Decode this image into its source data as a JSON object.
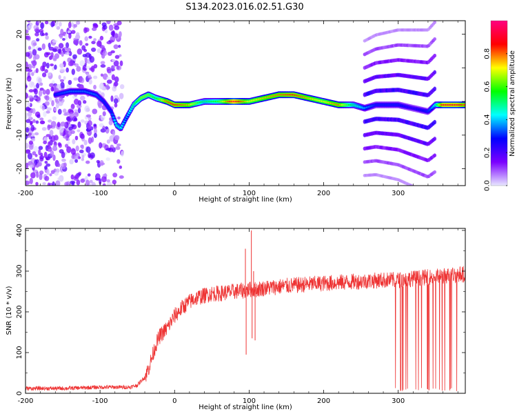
{
  "title": "S134.2023.016.02.51.G30",
  "chart_data": [
    {
      "type": "heatmap",
      "xlabel": "Height of straight line (km)",
      "ylabel": "Frequency (Hz)",
      "xlim": [
        -200,
        390
      ],
      "ylim": [
        -25,
        24
      ],
      "xticks": [
        -200,
        -100,
        0,
        100,
        200,
        300
      ],
      "yticks": [
        -20,
        -10,
        0,
        10,
        20
      ],
      "colorbar": {
        "label": "Normalized spectral amplitude",
        "range": [
          0,
          1
        ],
        "ticks": [
          "0.0",
          "0.2",
          "0.4",
          "0.6",
          "0.8"
        ],
        "tick_values": [
          0,
          0.2,
          0.4,
          0.6,
          0.8
        ],
        "colors": [
          "#e8e8ff",
          "#7b00ff",
          "#0000ff",
          "#00ffff",
          "#00ff00",
          "#ffff00",
          "#ff0000",
          "#ff0080"
        ]
      },
      "ridge": {
        "x": [
          -160,
          -140,
          -120,
          -105,
          -95,
          -85,
          -78,
          -72,
          -65,
          -55,
          -45,
          -35,
          -25,
          -10,
          0,
          20,
          40,
          60,
          80,
          100,
          120,
          140,
          160,
          180,
          200,
          220,
          240,
          255,
          270,
          300,
          320,
          340,
          350,
          360,
          380,
          390
        ],
        "y": [
          2,
          3,
          3,
          2,
          0,
          -3,
          -7,
          -8,
          -5,
          -1,
          1,
          2,
          1,
          0,
          -1,
          -1,
          0,
          0,
          0,
          0,
          1,
          2,
          2,
          1,
          0,
          -1,
          -1,
          -2,
          -1,
          -1,
          -2,
          -3,
          -1,
          -1,
          -1,
          -1
        ],
        "amplitude": [
          0.3,
          0.35,
          0.35,
          0.35,
          0.3,
          0.3,
          0.45,
          0.45,
          0.35,
          0.5,
          0.65,
          0.65,
          0.55,
          0.8,
          0.85,
          0.75,
          0.5,
          0.6,
          0.95,
          0.7,
          0.75,
          0.8,
          0.85,
          0.75,
          0.7,
          0.8,
          0.5,
          0.4,
          0.3,
          0.3,
          0.25,
          0.3,
          0.45,
          0.9,
          0.9,
          0.8
        ]
      },
      "harmonic_bands": {
        "x_range": [
          255,
          350
        ],
        "offsets_hz": [
          20,
          16,
          12,
          8,
          4,
          0,
          -4,
          -8,
          -12,
          -16,
          -20
        ],
        "peak_amplitude": 0.3
      }
    },
    {
      "type": "line",
      "xlabel": "Height of straight line (km)",
      "ylabel": "SNR (10 * v/v)",
      "xlim": [
        -200,
        390
      ],
      "ylim": [
        0,
        405
      ],
      "xticks": [
        -200,
        -100,
        0,
        100,
        200,
        300
      ],
      "yticks": [
        0,
        100,
        200,
        300,
        400
      ],
      "color": "#ee3333",
      "envelope": {
        "x": [
          -200,
          -150,
          -100,
          -80,
          -60,
          -50,
          -40,
          -35,
          -30,
          -25,
          -20,
          -15,
          -10,
          -5,
          0,
          10,
          20,
          30,
          40,
          50,
          60,
          70,
          80,
          90,
          95,
          100,
          105,
          110,
          120,
          140,
          160,
          180,
          200,
          220,
          240,
          260,
          280,
          290,
          295,
          300,
          320,
          340,
          360,
          370,
          380,
          390
        ],
        "y": [
          12,
          12,
          15,
          15,
          15,
          20,
          40,
          60,
          90,
          120,
          140,
          150,
          160,
          175,
          190,
          210,
          225,
          235,
          240,
          245,
          245,
          248,
          250,
          252,
          252,
          255,
          255,
          255,
          258,
          262,
          265,
          268,
          270,
          272,
          274,
          276,
          278,
          278,
          278,
          278,
          282,
          285,
          288,
          290,
          292,
          292
        ]
      },
      "spikes": [
        {
          "x": 95,
          "y": 355
        },
        {
          "x": 96,
          "y": 95
        },
        {
          "x": 103,
          "y": 400
        },
        {
          "x": 104,
          "y": 135
        },
        {
          "x": 106,
          "y": 300
        },
        {
          "x": 108,
          "y": 130
        }
      ],
      "dropout_region": [
        295,
        385
      ]
    }
  ]
}
